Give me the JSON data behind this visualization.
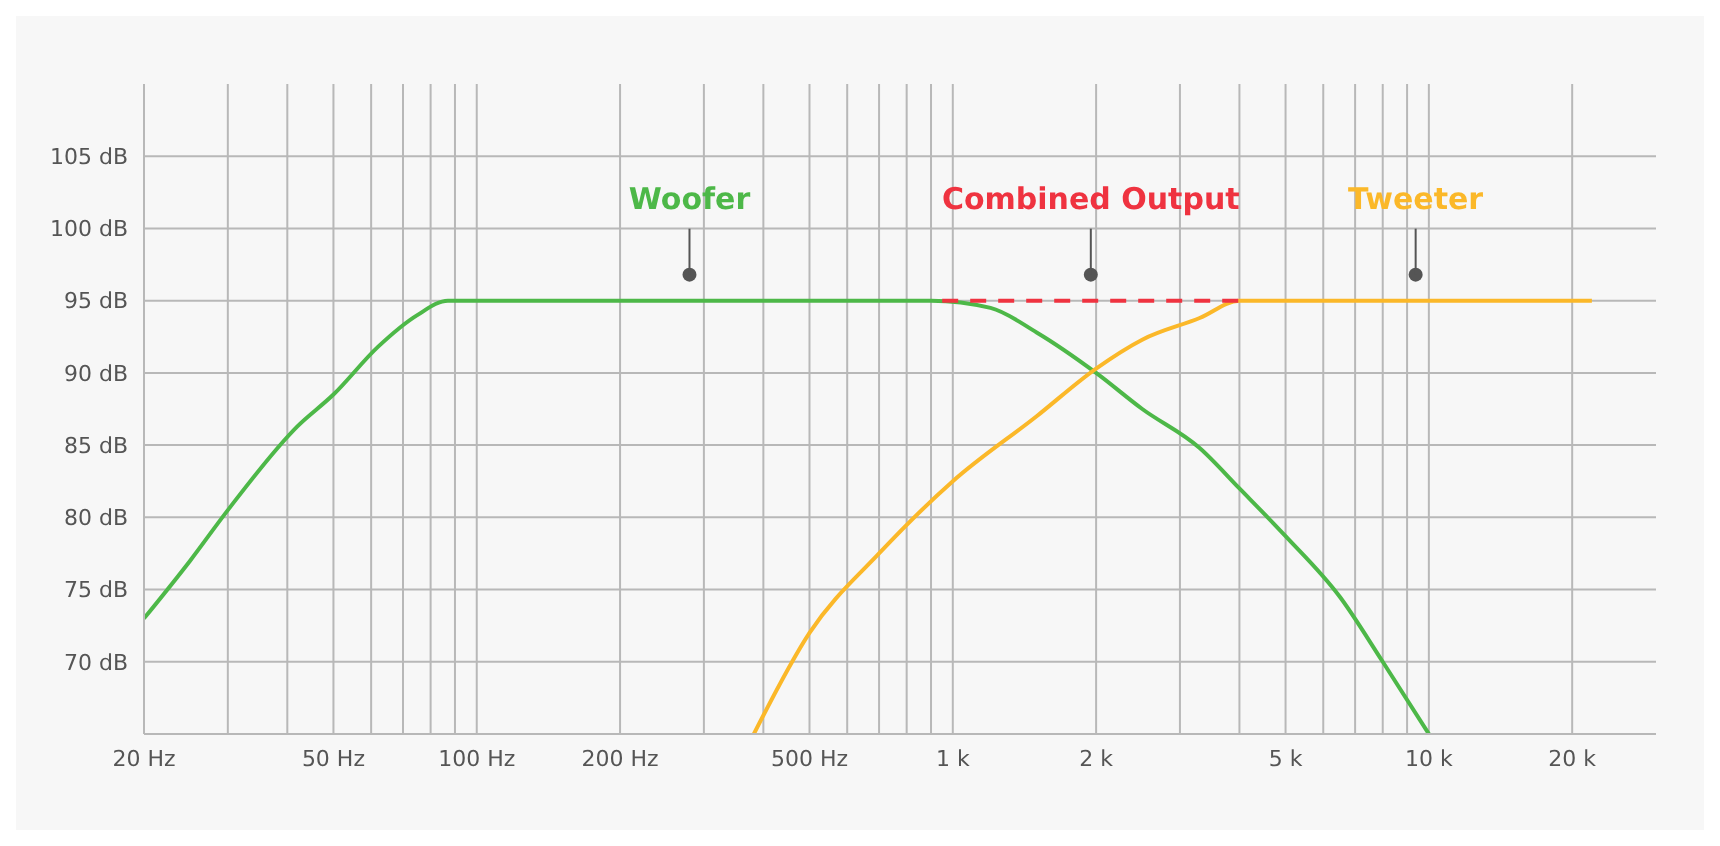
{
  "chart_data": {
    "type": "line",
    "log": "x",
    "grid": true,
    "legend": false,
    "marker": "none",
    "xlim": [
      20,
      30000
    ],
    "xticks": [
      {
        "value": 20,
        "label": "20 Hz"
      },
      {
        "value": 30,
        "label": null
      },
      {
        "value": 40,
        "label": null
      },
      {
        "value": 50,
        "label": "50 Hz"
      },
      {
        "value": 60,
        "label": null
      },
      {
        "value": 70,
        "label": null
      },
      {
        "value": 80,
        "label": null
      },
      {
        "value": 90,
        "label": null
      },
      {
        "value": 100,
        "label": "100 Hz"
      },
      {
        "value": 200,
        "label": "200 Hz"
      },
      {
        "value": 300,
        "label": null
      },
      {
        "value": 400,
        "label": null
      },
      {
        "value": 500,
        "label": "500 Hz"
      },
      {
        "value": 600,
        "label": null
      },
      {
        "value": 700,
        "label": null
      },
      {
        "value": 800,
        "label": null
      },
      {
        "value": 900,
        "label": null
      },
      {
        "value": 1000,
        "label": "1 k"
      },
      {
        "value": 2000,
        "label": "2 k"
      },
      {
        "value": 3000,
        "label": null
      },
      {
        "value": 4000,
        "label": null
      },
      {
        "value": 5000,
        "label": "5 k"
      },
      {
        "value": 6000,
        "label": null
      },
      {
        "value": 7000,
        "label": null
      },
      {
        "value": 8000,
        "label": null
      },
      {
        "value": 9000,
        "label": null
      },
      {
        "value": 10000,
        "label": "10 k"
      },
      {
        "value": 20000,
        "label": "20 k"
      }
    ],
    "ylim": [
      65,
      110
    ],
    "yticks": [
      {
        "value": 70,
        "label": "70 dB"
      },
      {
        "value": 75,
        "label": "75 dB"
      },
      {
        "value": 80,
        "label": "80 dB"
      },
      {
        "value": 85,
        "label": "85 dB"
      },
      {
        "value": 90,
        "label": "90 dB"
      },
      {
        "value": 95,
        "label": "95 dB"
      },
      {
        "value": 100,
        "label": "100 dB"
      },
      {
        "value": 105,
        "label": "105 dB"
      }
    ],
    "series": [
      {
        "name": "Woofer",
        "color": "#4db848",
        "line_style": "solid",
        "x": [
          20,
          25,
          30,
          42,
          50,
          62,
          75,
          87,
          900,
          1200,
          1500,
          2000,
          2500,
          3300,
          4000,
          5000,
          6500,
          8000,
          10000
        ],
        "values": [
          73,
          77,
          80.5,
          86.3,
          88.5,
          91.8,
          94,
          95,
          95,
          94.5,
          92.8,
          90,
          87.5,
          84.8,
          82,
          78.7,
          74.5,
          70,
          65
        ]
      },
      {
        "name": "Tweeter",
        "color": "#fbb829",
        "line_style": "solid",
        "x": [
          382,
          500,
          700,
          1000,
          1500,
          2000,
          2500,
          3300,
          4000,
          22000
        ],
        "values": [
          65,
          72,
          77.5,
          82.5,
          87,
          90.3,
          92.3,
          93.8,
          95,
          95
        ]
      },
      {
        "name": "Combined Output",
        "color": "#ef3340",
        "line_style": "dashed",
        "x": [
          950,
          4000
        ],
        "values": [
          95,
          95
        ]
      }
    ]
  }
}
